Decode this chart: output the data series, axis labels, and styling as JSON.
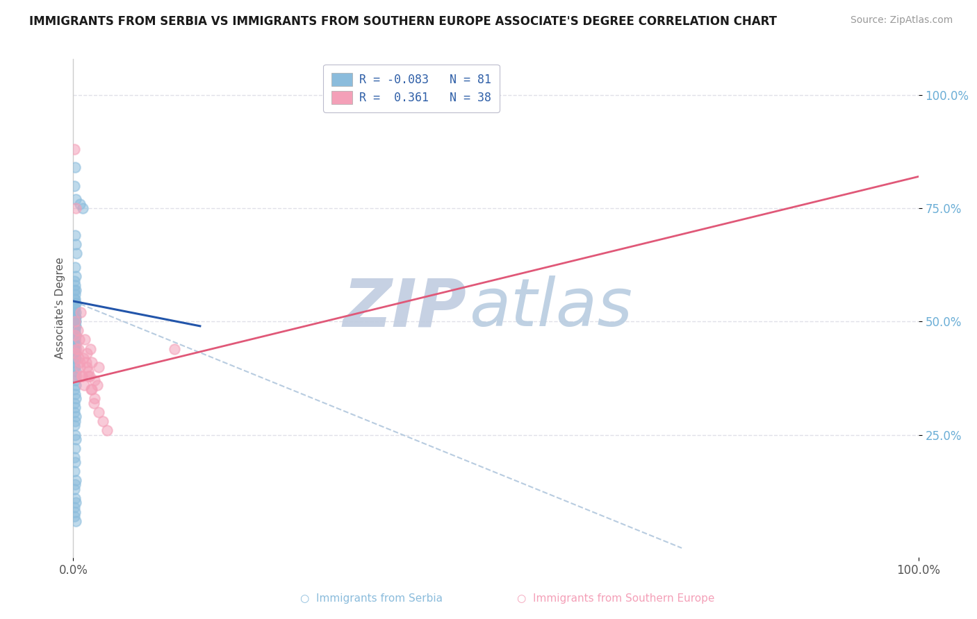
{
  "title": "IMMIGRANTS FROM SERBIA VS IMMIGRANTS FROM SOUTHERN EUROPE ASSOCIATE'S DEGREE CORRELATION CHART",
  "source_text": "Source: ZipAtlas.com",
  "ylabel": "Associate's Degree",
  "xlim": [
    0.0,
    1.0
  ],
  "ylim": [
    -0.02,
    1.08
  ],
  "x_ticks": [
    0.0,
    1.0
  ],
  "x_tick_labels": [
    "0.0%",
    "100.0%"
  ],
  "y_ticks": [
    0.25,
    0.5,
    0.75,
    1.0
  ],
  "y_tick_labels": [
    "25.0%",
    "50.0%",
    "75.0%",
    "100.0%"
  ],
  "y_tick_color": "#6baed6",
  "series1_color": "#8bbcdc",
  "series2_color": "#f4a0b8",
  "trendline1_color": "#2255aa",
  "trendline2_color": "#e05878",
  "dashed_color": "#b8cce0",
  "watermark_zip_color": "#c0cce0",
  "watermark_atlas_color": "#b8cce0",
  "grid_color": "#e0e0e8",
  "background_color": "#ffffff",
  "footer_label1": "Immigrants from Serbia",
  "footer_label2": "Immigrants from Southern Europe",
  "legend_r1": "-0.083",
  "legend_n1": "81",
  "legend_r2": "0.361",
  "legend_n2": "38",
  "serbia_x": [
    0.002,
    0.001,
    0.003,
    0.008,
    0.011,
    0.002,
    0.003,
    0.004,
    0.002,
    0.003,
    0.001,
    0.002,
    0.003,
    0.001,
    0.002,
    0.001,
    0.002,
    0.003,
    0.002,
    0.001,
    0.002,
    0.003,
    0.001,
    0.002,
    0.003,
    0.002,
    0.001,
    0.003,
    0.002,
    0.001,
    0.002,
    0.003,
    0.001,
    0.002,
    0.003,
    0.002,
    0.001,
    0.002,
    0.001,
    0.002,
    0.003,
    0.001,
    0.002,
    0.001,
    0.003,
    0.002,
    0.001,
    0.002,
    0.003,
    0.001,
    0.002,
    0.001,
    0.003,
    0.002,
    0.001,
    0.002,
    0.003,
    0.001,
    0.002,
    0.003,
    0.001,
    0.002,
    0.001,
    0.003,
    0.002,
    0.001,
    0.002,
    0.003,
    0.002,
    0.001,
    0.002,
    0.001,
    0.003,
    0.002,
    0.001,
    0.002,
    0.003,
    0.001,
    0.002,
    0.001,
    0.003
  ],
  "serbia_y": [
    0.84,
    0.8,
    0.77,
    0.76,
    0.75,
    0.69,
    0.67,
    0.65,
    0.62,
    0.6,
    0.59,
    0.58,
    0.57,
    0.57,
    0.56,
    0.55,
    0.55,
    0.54,
    0.54,
    0.53,
    0.53,
    0.52,
    0.52,
    0.51,
    0.51,
    0.51,
    0.5,
    0.5,
    0.5,
    0.49,
    0.49,
    0.49,
    0.48,
    0.48,
    0.47,
    0.47,
    0.47,
    0.46,
    0.46,
    0.46,
    0.45,
    0.45,
    0.44,
    0.44,
    0.43,
    0.43,
    0.43,
    0.42,
    0.42,
    0.41,
    0.4,
    0.4,
    0.39,
    0.38,
    0.38,
    0.37,
    0.36,
    0.35,
    0.34,
    0.33,
    0.32,
    0.31,
    0.3,
    0.29,
    0.28,
    0.27,
    0.25,
    0.24,
    0.22,
    0.2,
    0.19,
    0.17,
    0.15,
    0.14,
    0.13,
    0.11,
    0.1,
    0.09,
    0.08,
    0.07,
    0.06
  ],
  "southern_x": [
    0.001,
    0.002,
    0.003,
    0.004,
    0.005,
    0.006,
    0.007,
    0.008,
    0.009,
    0.01,
    0.012,
    0.014,
    0.016,
    0.018,
    0.02,
    0.022,
    0.025,
    0.028,
    0.03,
    0.002,
    0.003,
    0.004,
    0.006,
    0.008,
    0.01,
    0.013,
    0.016,
    0.019,
    0.022,
    0.025,
    0.015,
    0.018,
    0.021,
    0.024,
    0.03,
    0.035,
    0.04,
    0.12
  ],
  "southern_y": [
    0.88,
    0.5,
    0.75,
    0.44,
    0.48,
    0.42,
    0.46,
    0.4,
    0.52,
    0.38,
    0.42,
    0.46,
    0.43,
    0.39,
    0.44,
    0.41,
    0.37,
    0.36,
    0.4,
    0.47,
    0.43,
    0.38,
    0.44,
    0.41,
    0.38,
    0.36,
    0.4,
    0.38,
    0.35,
    0.33,
    0.41,
    0.38,
    0.35,
    0.32,
    0.3,
    0.28,
    0.26,
    0.44
  ],
  "trendline1_x": [
    0.0,
    0.15
  ],
  "trendline1_y": [
    0.545,
    0.49
  ],
  "trendline2_x": [
    0.0,
    1.0
  ],
  "trendline2_y": [
    0.365,
    0.82
  ],
  "dashline_x": [
    0.0,
    0.72
  ],
  "dashline_y": [
    0.545,
    0.0
  ]
}
